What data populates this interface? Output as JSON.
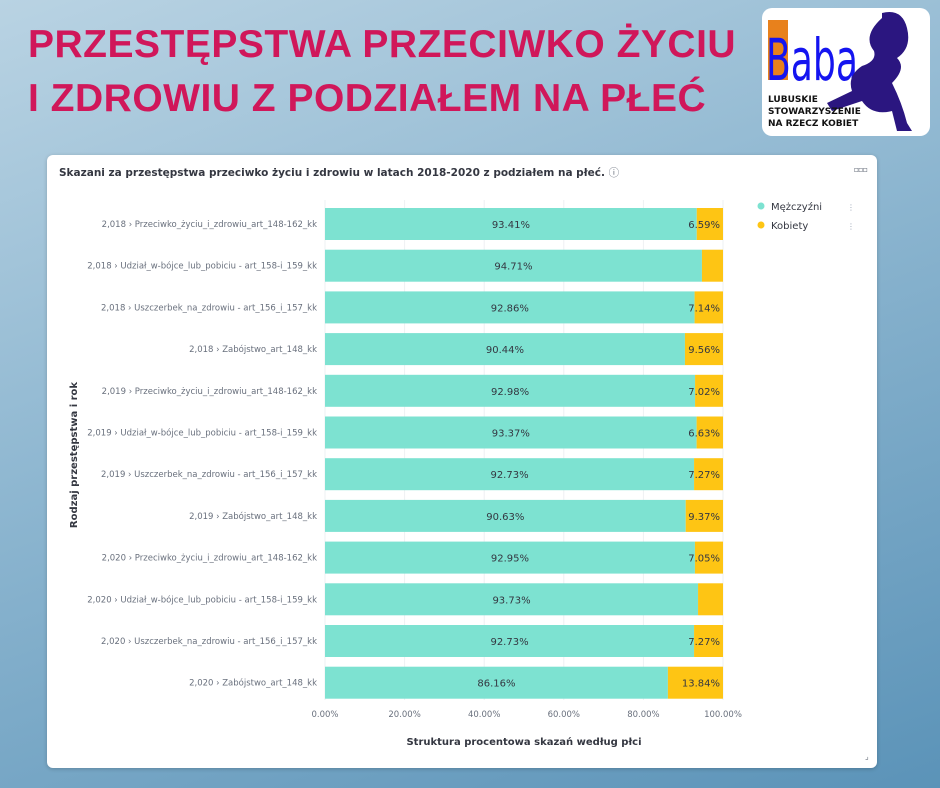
{
  "header": {
    "title_line1": "PRZESTĘPSTWA PRZECIWKO ŻYCIU",
    "title_line2": "I ZDROWIU Z PODZIAŁEM NA PŁEĆ"
  },
  "logo": {
    "word": "Baba",
    "line1": "LUBUSKIE",
    "line2": "STOWARZYSZENIE",
    "line3": "NA RZECZ KOBIET"
  },
  "panel": {
    "title": "Skazani za przestępstwa przeciwko życiu i zdrowiu w latach 2018-2020 z podziałem na płeć.",
    "info_icon": "info-icon",
    "menu_icon": "ellipsis-icon"
  },
  "chart_data": {
    "type": "bar",
    "orientation": "horizontal",
    "stacked": "percent",
    "xlabel": "Struktura procentowa skazań według płci",
    "ylabel": "Rodzaj przestępstwa i rok",
    "xlim": [
      0,
      100
    ],
    "xticks": [
      "0.00%",
      "20.00%",
      "40.00%",
      "60.00%",
      "80.00%",
      "100.00%"
    ],
    "legend_position": "right",
    "categories": [
      "2,018 › Przeciwko_życiu_i_zdrowiu_art_148-162_kk",
      "2,018 › Udział_w-bójce_lub_pobiciu - art_158-i_159_kk",
      "2,018 › Uszczerbek_na_zdrowiu - art_156_i_157_kk",
      "2,018 › Zabójstwo_art_148_kk",
      "2,019 › Przeciwko_życiu_i_zdrowiu_art_148-162_kk",
      "2,019 › Udział_w-bójce_lub_pobiciu - art_158-i_159_kk",
      "2,019 › Uszczerbek_na_zdrowiu - art_156_i_157_kk",
      "2,019 › Zabójstwo_art_148_kk",
      "2,020 › Przeciwko_życiu_i_zdrowiu_art_148-162_kk",
      "2,020 › Udział_w-bójce_lub_pobiciu - art_158-i_159_kk",
      "2,020 › Uszczerbek_na_zdrowiu - art_156_i_157_kk",
      "2,020 › Zabójstwo_art_148_kk"
    ],
    "series": [
      {
        "name": "Mężczyźni",
        "color": "#7de2d1",
        "values": [
          93.41,
          94.71,
          92.86,
          90.44,
          92.98,
          93.37,
          92.73,
          90.63,
          92.95,
          93.73,
          92.73,
          86.16
        ]
      },
      {
        "name": "Kobiety",
        "color": "#fec514",
        "values": [
          6.59,
          5.29,
          7.14,
          9.56,
          7.02,
          6.63,
          7.27,
          9.37,
          7.05,
          6.27,
          7.27,
          13.84
        ],
        "labels_shown": [
          true,
          false,
          true,
          true,
          true,
          true,
          true,
          true,
          true,
          false,
          true,
          true
        ]
      }
    ]
  }
}
